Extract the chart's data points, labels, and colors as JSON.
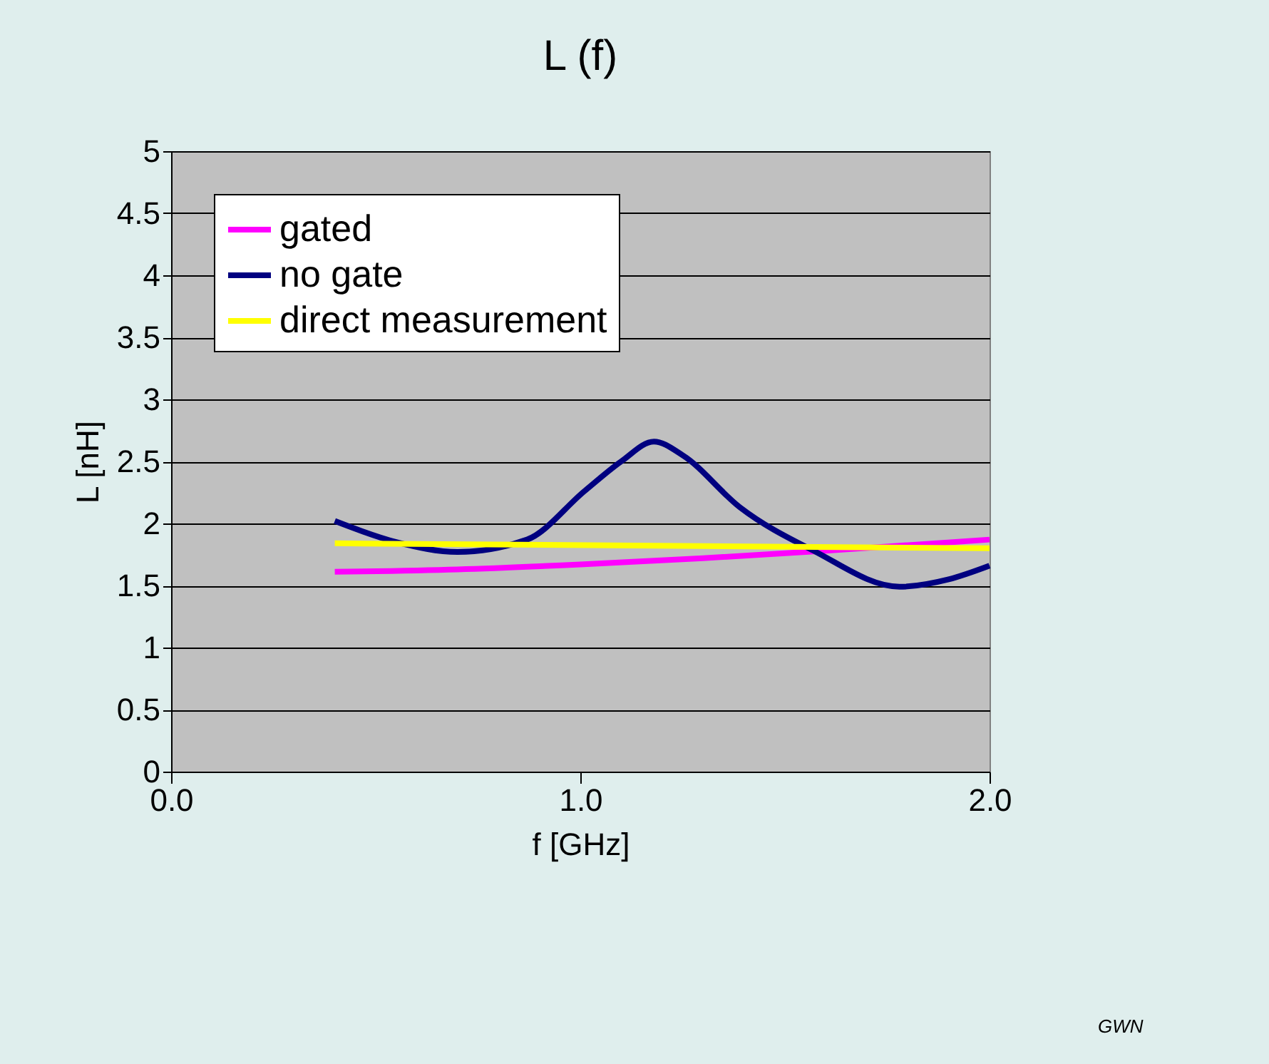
{
  "chart_data": {
    "type": "line",
    "title": "L (f)",
    "xlabel": "f [GHz]",
    "ylabel": "L [nH]",
    "annotations": [
      "GWN"
    ],
    "xlim": [
      0,
      2
    ],
    "xticks": [
      {
        "value": 0,
        "label": "0.0"
      },
      {
        "value": 1,
        "label": "1.0"
      },
      {
        "value": 2,
        "label": "2.0"
      }
    ],
    "ylim": [
      0,
      5
    ],
    "yticks": [
      0,
      0.5,
      1,
      1.5,
      2,
      2.5,
      3,
      3.5,
      4,
      4.5,
      5
    ],
    "grid": "y",
    "legend": "top left",
    "marker": "none",
    "line_style": "solid",
    "series": [
      {
        "name": "gated",
        "color": "#ff00ff",
        "x": [
          0.4,
          0.7,
          1.0,
          1.3,
          1.6,
          2.0
        ],
        "values": [
          1.61,
          1.63,
          1.67,
          1.72,
          1.78,
          1.87
        ]
      },
      {
        "name": "no gate",
        "color": "#000080",
        "x": [
          0.4,
          0.55,
          0.7,
          0.87,
          1.01,
          1.1,
          1.18,
          1.25,
          1.39,
          1.57,
          1.78,
          1.9,
          2.0
        ],
        "values": [
          2.02,
          1.85,
          1.77,
          1.87,
          2.26,
          2.5,
          2.66,
          2.55,
          2.13,
          1.78,
          1.49,
          1.55,
          1.66
        ]
      },
      {
        "name": "direct measurement",
        "color": "#ffff00",
        "x": [
          0.4,
          2.0
        ],
        "values": [
          1.84,
          1.8
        ]
      }
    ]
  }
}
